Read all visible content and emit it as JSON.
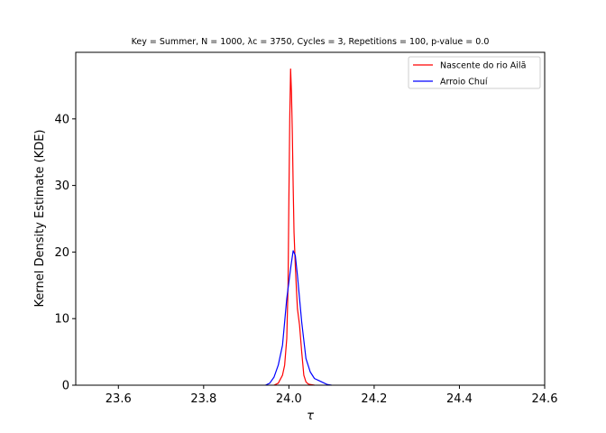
{
  "chart_data": {
    "type": "line",
    "title": "Key = Summer, N = 1000, λᴄ = 3750, Cycles = 3, Repetitions = 100, p-value = 0.0",
    "xlabel": "τ",
    "ylabel": "Kernel Density Estimate (KDE)",
    "xlim": [
      23.5,
      24.6
    ],
    "ylim": [
      0,
      50
    ],
    "xticks": [
      23.6,
      23.8,
      24.0,
      24.2,
      24.4,
      24.6
    ],
    "xtick_labels": [
      "23.6",
      "23.8",
      "24.0",
      "24.2",
      "24.4",
      "24.6"
    ],
    "yticks": [
      0,
      10,
      20,
      30,
      40
    ],
    "ytick_labels": [
      "0",
      "10",
      "20",
      "30",
      "40"
    ],
    "grid": false,
    "legend_position": "top-right",
    "series": [
      {
        "name": "Nascente do rio Ailã",
        "color": "#ff0000",
        "x": [
          23.965,
          23.975,
          23.985,
          23.99,
          23.995,
          23.998,
          24.0,
          24.002,
          24.004,
          24.006,
          24.008,
          24.01,
          24.012,
          24.015,
          24.018,
          24.02,
          24.025,
          24.03,
          24.035,
          24.04,
          24.045,
          24.05,
          24.055,
          24.06
        ],
        "y": [
          0,
          0.3,
          1.5,
          3.0,
          7.0,
          15.0,
          28.0,
          40.0,
          47.5,
          44.0,
          38.0,
          30.0,
          23.0,
          18.0,
          14.0,
          11.5,
          9.0,
          5.0,
          1.5,
          0.5,
          0.2,
          0.1,
          0.05,
          0
        ]
      },
      {
        "name": "Arroio Chuí",
        "color": "#0000ff",
        "x": [
          23.945,
          23.955,
          23.965,
          23.975,
          23.985,
          23.99,
          23.995,
          24.0,
          24.005,
          24.01,
          24.015,
          24.02,
          24.025,
          24.03,
          24.04,
          24.05,
          24.06,
          24.07,
          24.08,
          24.09,
          24.1
        ],
        "y": [
          0,
          0.3,
          1.2,
          3.0,
          6.0,
          9.5,
          13.0,
          15.5,
          18.0,
          20.2,
          19.5,
          16.5,
          13.0,
          9.5,
          4.0,
          2.0,
          1.0,
          0.7,
          0.4,
          0.1,
          0
        ]
      }
    ]
  }
}
